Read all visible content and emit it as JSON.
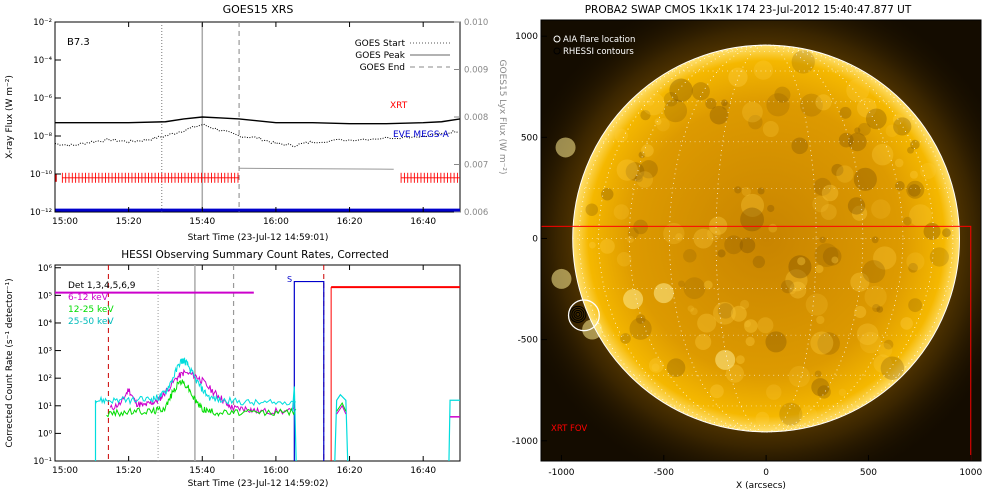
{
  "chart_data": [
    {
      "id": "goes",
      "type": "line",
      "title": "GOES15 XRS",
      "xlabel": "Start Time (23-Jul-12 14:59:01)",
      "ylabel": "X-ray Flux (W m⁻²)",
      "y2label": "GOES15 Lyx Flux (W m⁻²)",
      "class_label": "B7.3",
      "x_ticks": [
        "15:00",
        "15:20",
        "15:40",
        "16:00",
        "16:20",
        "16:40"
      ],
      "y_ticks": [
        "10⁻¹²",
        "10⁻¹⁰",
        "10⁻⁸",
        "10⁻⁶",
        "10⁻⁴",
        "10⁻²"
      ],
      "y_exponents": [
        -12,
        -10,
        -8,
        -6,
        -4,
        -2
      ],
      "y2_ticks": [
        "0.006",
        "0.007",
        "0.008",
        "0.009",
        "0.010"
      ],
      "y2_values": [
        0.006,
        0.007,
        0.008,
        0.009,
        0.01
      ],
      "xlim_min": [
        0,
        110
      ],
      "ylim_log10": [
        -12,
        -2
      ],
      "y2lim": [
        0.006,
        0.01
      ],
      "x_tick_min": [
        0,
        20,
        40,
        60,
        80,
        100
      ],
      "vlines": {
        "start": 29,
        "peak": 40,
        "end": 50
      },
      "legend": [
        "GOES Start",
        "GOES Peak",
        "GOES End"
      ],
      "annotations": {
        "xrt": "XRT",
        "eve": "EVE MEGS-A"
      },
      "colors": {
        "xrt": "#ff0000",
        "eve": "#0000cc",
        "long": "#000000",
        "rhessi_flag": "#cc0000"
      },
      "series_long": {
        "x": [
          0,
          10,
          20,
          30,
          35,
          40,
          45,
          50,
          55,
          60,
          70,
          80,
          90,
          100,
          105,
          110
        ],
        "y": [
          -7.3,
          -7.3,
          -7.3,
          -7.25,
          -7.1,
          -7.0,
          -7.05,
          -7.1,
          -7.2,
          -7.3,
          -7.3,
          -7.35,
          -7.35,
          -7.3,
          -7.25,
          -7.1
        ]
      },
      "series_short": {
        "x": [
          0,
          5,
          10,
          15,
          20,
          25,
          30,
          35,
          40,
          45,
          50,
          55,
          60,
          65,
          70,
          80,
          90,
          100,
          105,
          110
        ],
        "y": [
          -8.4,
          -8.5,
          -8.3,
          -8.2,
          -8.3,
          -8.2,
          -8.0,
          -7.7,
          -7.4,
          -7.7,
          -8.0,
          -8.1,
          -8.4,
          -8.5,
          -8.3,
          -8.2,
          -8.1,
          -8.0,
          -7.9,
          -7.7
        ]
      },
      "lyx_level": [
        0.00692,
        0.0069
      ],
      "eve_level": -11.9,
      "xrt_flag_segments": [
        [
          0,
          50
        ],
        [
          92,
          110
        ]
      ],
      "xrt_flag_level": -10.2,
      "rhessi_flag_segment": [
        0,
        1.5
      ]
    },
    {
      "id": "hessi",
      "type": "line",
      "title": "HESSI Observing Summary Count Rates, Corrected",
      "xlabel": "Start Time (23-Jul-12 14:59:02)",
      "ylabel": "Corrected Count Rate (s⁻¹ detector⁻¹)",
      "x_ticks": [
        "15:00",
        "15:20",
        "15:40",
        "16:00",
        "16:20",
        "16:40"
      ],
      "x_tick_min": [
        0,
        20,
        40,
        60,
        80,
        100
      ],
      "xlim_min": [
        0,
        110
      ],
      "y_ticks": [
        "10⁻¹",
        "10⁰",
        "10¹",
        "10²",
        "10³",
        "10⁴",
        "10⁵",
        "10⁶"
      ],
      "y_exponents": [
        -1,
        0,
        1,
        2,
        3,
        4,
        5,
        6
      ],
      "ylim_log10": [
        -1,
        6.1
      ],
      "legend_title": "Det 1,3,4,5,6,9",
      "series": [
        {
          "name": "6-12 keV",
          "color": "#cc00cc",
          "x": [
            15,
            18,
            20,
            22,
            24,
            26,
            28,
            30,
            33,
            35,
            38,
            40,
            43,
            45,
            47,
            49,
            52,
            55,
            60,
            66
          ],
          "y": [
            0.9,
            1.1,
            1.6,
            1.1,
            1.0,
            1.1,
            1.2,
            1.5,
            2.0,
            2.2,
            2.1,
            1.9,
            1.5,
            1.3,
            1.0,
            0.9,
            0.9,
            0.8,
            0.8,
            0.8
          ]
        },
        {
          "name": "12-25 keV",
          "color": "#00dd00",
          "x": [
            14,
            18,
            22,
            26,
            28,
            30,
            32,
            34,
            36,
            38,
            40,
            42,
            45,
            50,
            55,
            60,
            66
          ],
          "y": [
            0.7,
            0.75,
            0.8,
            0.8,
            0.85,
            0.95,
            1.5,
            1.9,
            1.7,
            1.2,
            0.9,
            0.8,
            0.75,
            0.75,
            0.75,
            0.75,
            0.8
          ]
        },
        {
          "name": "25-50 keV",
          "color": "#00dddd",
          "x": [
            11,
            14,
            18,
            22,
            26,
            28,
            30,
            32,
            34,
            35,
            36,
            38,
            40,
            42,
            45,
            50,
            55,
            60,
            66
          ],
          "y": [
            1.2,
            1.2,
            1.2,
            1.2,
            1.25,
            1.3,
            1.5,
            2.0,
            2.6,
            2.65,
            2.5,
            2.0,
            1.6,
            1.3,
            1.2,
            1.15,
            1.1,
            1.1,
            1.2
          ]
        }
      ],
      "attenuator_levels": [
        {
          "x": [
            0,
            54
          ],
          "y": 5.1,
          "color": "#cc00cc"
        },
        {
          "x": [
            75,
            110
          ],
          "y": 5.3,
          "color": "#ff0000"
        }
      ],
      "saa_label": "S",
      "saa_segment": [
        65,
        73
      ],
      "saa_level": 5.5,
      "vlines": {
        "start": 14.5,
        "peak": 38,
        "end": 48.5,
        "red2": 73
      },
      "gridline_dotted": 28
    },
    {
      "id": "swap",
      "type": "image",
      "title": "PROBA2 SWAP CMOS 1Kx1K 174 23-Jul-2012 15:40:47.877 UT",
      "xlabel": "X (arcsecs)",
      "x_ticks": [
        "-1000",
        "-500",
        "0",
        "500",
        "1000"
      ],
      "x_values": [
        -1000,
        -500,
        0,
        500,
        1000
      ],
      "y_ticks": [
        "1000",
        "500",
        "0",
        "-500",
        "-1000"
      ],
      "y_values": [
        1000,
        500,
        0,
        -500,
        -1000
      ],
      "xlim": [
        -1100,
        1050
      ],
      "ylim": [
        -1100,
        1080
      ],
      "legend": [
        "AIA flare location",
        "RHESSI contours"
      ],
      "fov_label": "XRT FOV",
      "fov_box": {
        "x": [
          -1100,
          1000
        ],
        "y": [
          -1100,
          60
        ]
      },
      "disk_radius_arcsec": 945,
      "flare_center": [
        -905,
        -380
      ],
      "flare_radius_arcsec": 75,
      "colors": {
        "fov": "#ff0000",
        "sun": "#f0a400",
        "corona": "#5a3a00",
        "bg": "#140c00"
      }
    }
  ]
}
